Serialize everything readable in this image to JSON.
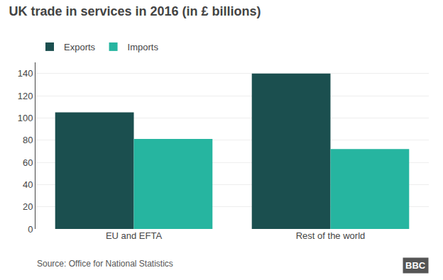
{
  "chart_data": {
    "type": "bar",
    "title": "UK trade in services in 2016 (in £ billions)",
    "categories": [
      "EU and EFTA",
      "Rest of the world"
    ],
    "series": [
      {
        "name": "Exports",
        "color": "#1b4f4f",
        "values": [
          105,
          140
        ]
      },
      {
        "name": "Imports",
        "color": "#26b5a0",
        "values": [
          81,
          72
        ]
      }
    ],
    "ylim": [
      0,
      150
    ],
    "yticks": [
      0,
      20,
      40,
      60,
      80,
      100,
      120,
      140
    ],
    "grid": true,
    "legend": "top left",
    "annotations": [
      "Source: Office for National Statistics",
      "BBC"
    ]
  }
}
